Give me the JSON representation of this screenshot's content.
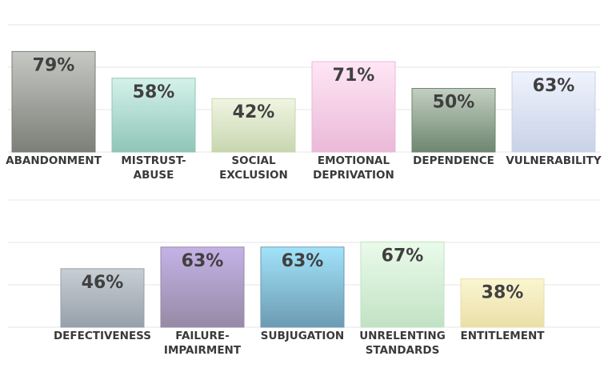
{
  "colors": {
    "abandonment": [
      "#c6c8c4",
      "#7c7e78"
    ],
    "mistrust": [
      "#d4f2ea",
      "#8fc5b8"
    ],
    "social": [
      "#f0f5e2",
      "#c8d6b0"
    ],
    "emotional": [
      "#ffe6f5",
      "#eab9d8"
    ],
    "dependence": [
      "#c2cfc2",
      "#6f866f"
    ],
    "vulnerability": [
      "#eef3fd",
      "#c9d2e6"
    ],
    "defectiveness": [
      "#c8ced4",
      "#96a0aa"
    ],
    "failure": [
      "#c4b2e6",
      "#968aa6"
    ],
    "subjugation": [
      "#a2e3fa",
      "#6c9bb2"
    ],
    "unrelenting": [
      "#eafbea",
      "#c2e2c4"
    ],
    "entitlement": [
      "#fbf6d2",
      "#eadfa8"
    ]
  },
  "chart_data": [
    {
      "type": "bar",
      "categories": [
        [
          "ABANDONMENT"
        ],
        [
          "MISTRUST-",
          "ABUSE"
        ],
        [
          "SOCIAL",
          "EXCLUSION"
        ],
        [
          "EMOTIONAL",
          "DEPRIVATION"
        ],
        [
          "DEPENDENCE"
        ],
        [
          "VULNERABILITY"
        ]
      ],
      "values": [
        79,
        58,
        42,
        71,
        50,
        63
      ],
      "data_labels": [
        "79%",
        "58%",
        "42%",
        "71%",
        "50%",
        "63%"
      ],
      "color_keys": [
        "abandonment",
        "mistrust",
        "social",
        "emotional",
        "dependence",
        "vulnerability"
      ],
      "ylim": [
        0,
        100
      ],
      "grid": true
    },
    {
      "type": "bar",
      "categories": [
        [
          "DEFECTIVENESS"
        ],
        [
          "FAILURE-",
          "IMPAIRMENT"
        ],
        [
          "SUBJUGATION"
        ],
        [
          "UNRELENTING",
          "STANDARDS"
        ],
        [
          "ENTITLEMENT"
        ]
      ],
      "values": [
        46,
        63,
        63,
        67,
        38
      ],
      "data_labels": [
        "46%",
        "63%",
        "63%",
        "67%",
        "38%"
      ],
      "color_keys": [
        "defectiveness",
        "failure",
        "subjugation",
        "unrelenting",
        "entitlement"
      ],
      "ylim": [
        0,
        100
      ],
      "grid": true
    }
  ]
}
